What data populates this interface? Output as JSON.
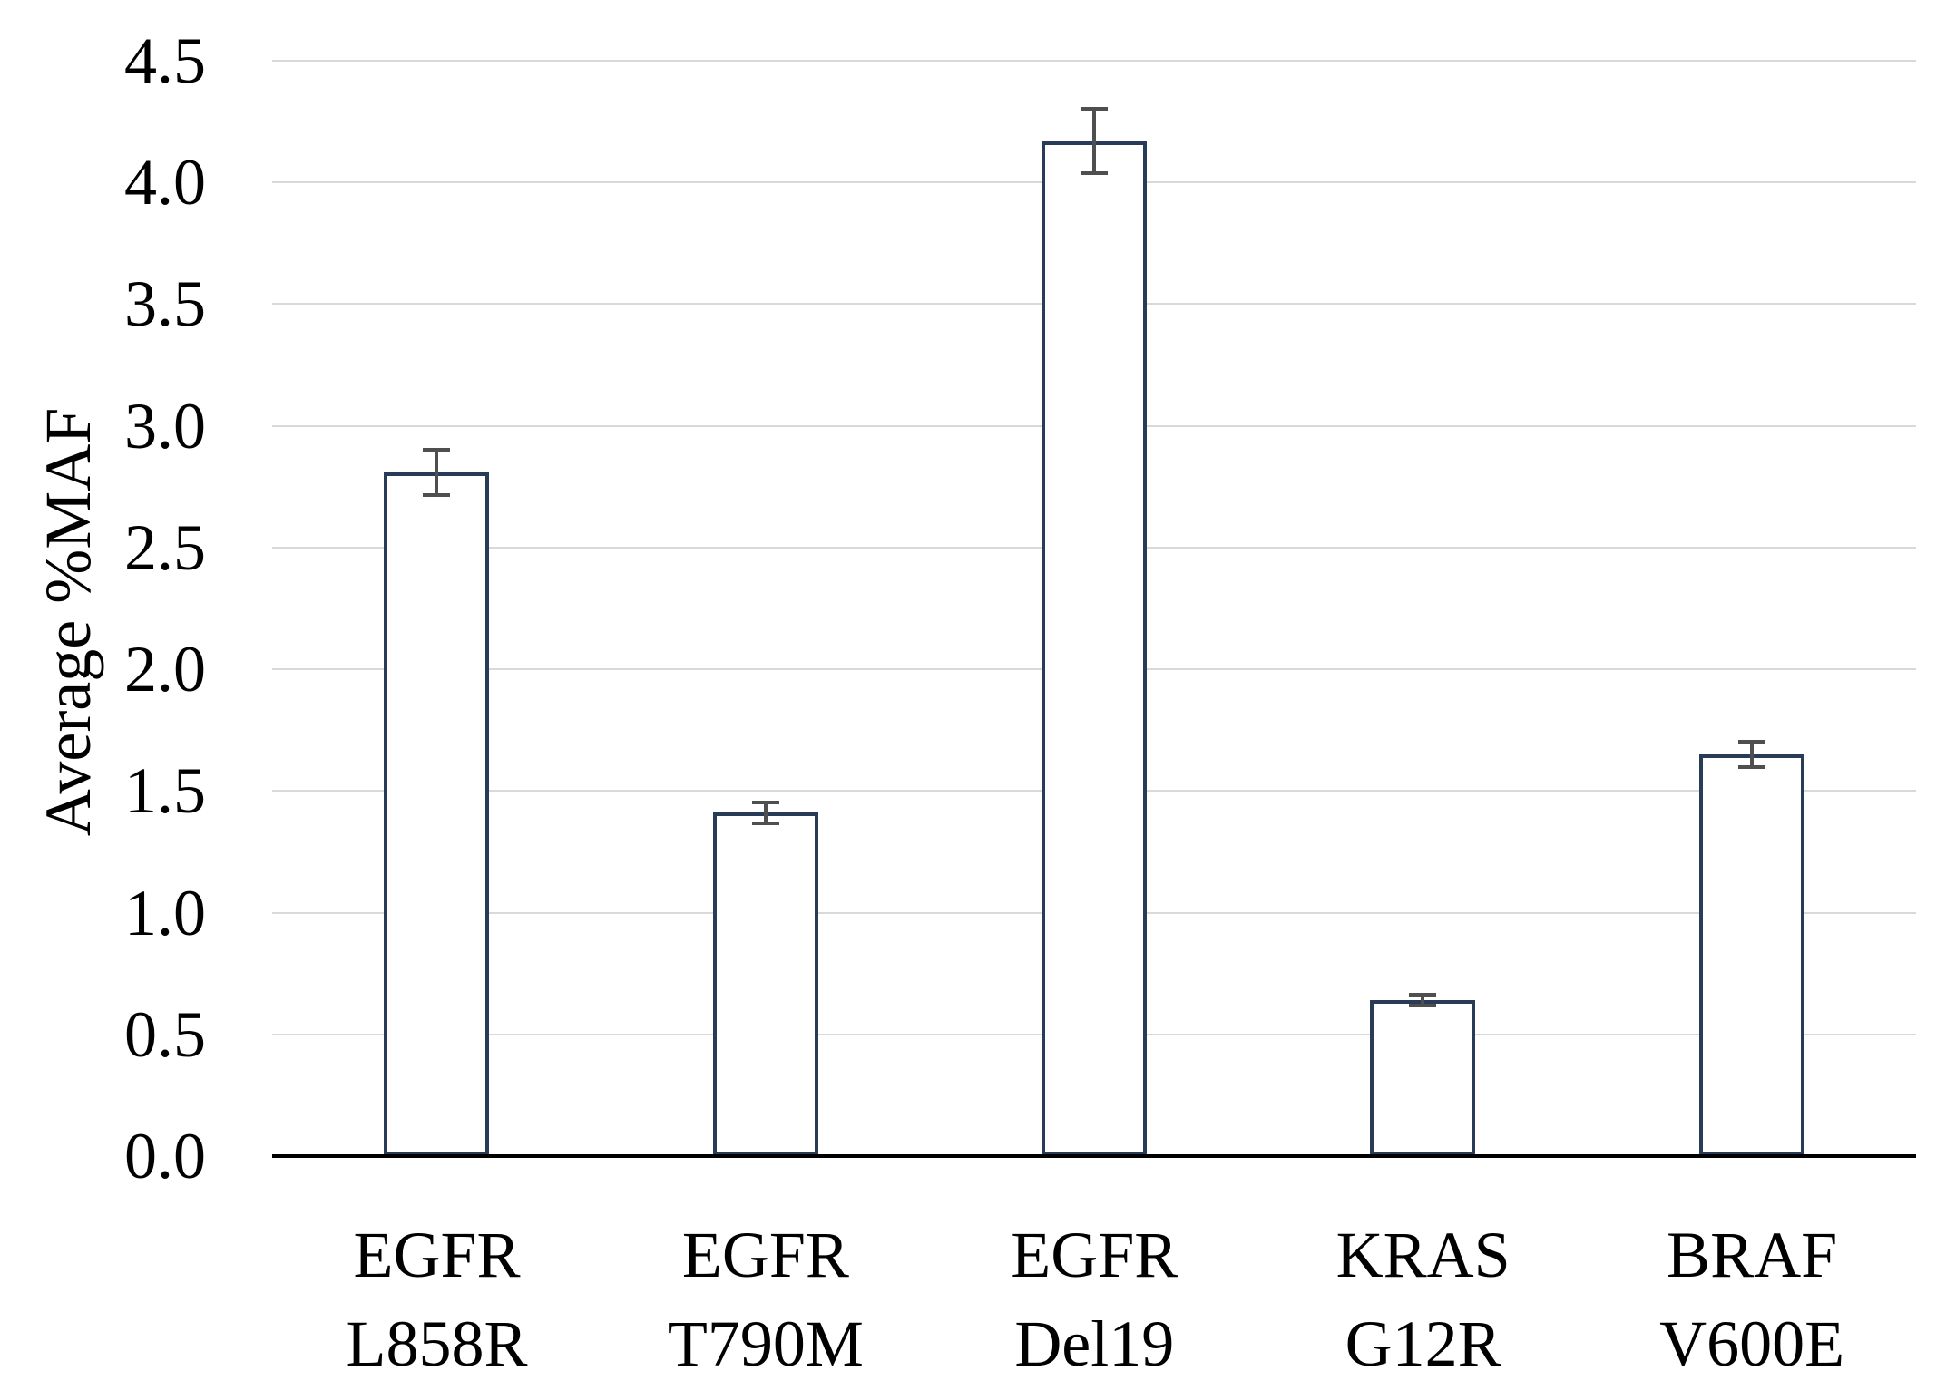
{
  "chart": {
    "background": "#ffffff",
    "text_color": "#000000"
  },
  "chart_data": {
    "type": "bar",
    "title": "",
    "xlabel": "",
    "ylabel": "Average %MAF",
    "ylim": [
      0,
      4.5
    ],
    "y_tick_step": 0.5,
    "y_ticks": [
      "4.5",
      "4.0",
      "3.5",
      "3.0",
      "2.5",
      "2.0",
      "1.5",
      "1.0",
      "0.5",
      "0.0"
    ],
    "grid": true,
    "legend_position": "none",
    "categories": [
      "EGFR L858R",
      "EGFR T790M",
      "EGFR Del19",
      "KRAS G12R",
      "BRAF V600E"
    ],
    "category_label_lines": [
      {
        "line1": "EGFR",
        "line2": "L858R"
      },
      {
        "line1": "EGFR",
        "line2": "T790M"
      },
      {
        "line1": "EGFR",
        "line2": "Del19"
      },
      {
        "line1": "KRAS",
        "line2": "G12R"
      },
      {
        "line1": "BRAF",
        "line2": "V600E"
      }
    ],
    "values": [
      2.81,
      1.41,
      4.17,
      0.64,
      1.65
    ],
    "error_bars": [
      0.1,
      0.05,
      0.14,
      0.03,
      0.06
    ],
    "colors": {
      "bar_fill": "#ffffff",
      "bar_border": "#283C58",
      "error_bar": "#4F4F4F",
      "gridline": "#D9D9D9",
      "axis_line": "#000000"
    }
  }
}
